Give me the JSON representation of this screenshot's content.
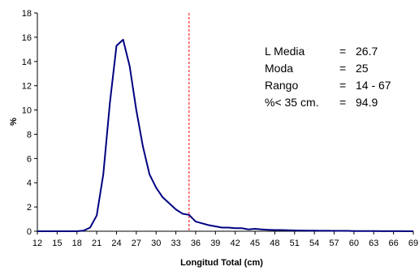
{
  "chart_data": {
    "type": "line",
    "xlabel": "Longitud Total (cm)",
    "ylabel": "%",
    "xlim": [
      12,
      69
    ],
    "ylim": [
      0,
      18
    ],
    "x_ticks": [
      12,
      15,
      18,
      21,
      24,
      27,
      30,
      33,
      36,
      39,
      42,
      45,
      48,
      51,
      54,
      57,
      60,
      63,
      66,
      69
    ],
    "y_ticks": [
      0,
      2,
      4,
      6,
      8,
      10,
      12,
      14,
      16,
      18
    ],
    "grid": false,
    "series": [
      {
        "color": "#000080",
        "x": [
          12,
          13,
          14,
          15,
          16,
          17,
          18,
          19,
          20,
          21,
          22,
          23,
          24,
          25,
          26,
          27,
          28,
          29,
          30,
          31,
          32,
          33,
          34,
          35,
          36,
          37,
          38,
          39,
          40,
          41,
          42,
          43,
          44,
          45,
          46,
          47,
          48,
          49,
          50,
          51,
          52,
          53,
          54,
          55,
          56,
          57,
          58,
          59,
          60,
          61,
          62,
          63,
          64,
          65,
          66,
          67,
          68,
          69
        ],
        "y": [
          0,
          0,
          0,
          0,
          0,
          0,
          0,
          0.05,
          0.3,
          1.3,
          4.7,
          10.6,
          15.3,
          15.8,
          13.6,
          10.0,
          7.0,
          4.7,
          3.6,
          2.8,
          2.3,
          1.8,
          1.45,
          1.35,
          0.8,
          0.65,
          0.5,
          0.4,
          0.3,
          0.3,
          0.25,
          0.25,
          0.15,
          0.2,
          0.15,
          0.12,
          0.1,
          0.1,
          0.08,
          0.07,
          0.06,
          0.05,
          0.05,
          0.04,
          0.04,
          0.03,
          0.03,
          0.03,
          0.02,
          0.02,
          0.02,
          0.02,
          0.01,
          0.01,
          0.01,
          0.01,
          0,
          0
        ]
      }
    ],
    "reference_line": {
      "x": 35,
      "color": "#ff0000",
      "style": "dashed"
    },
    "annotations": [
      {
        "label": "L Media",
        "eq": "=",
        "value": "26.7"
      },
      {
        "label": "Moda",
        "eq": "=",
        "value": "25"
      },
      {
        "label": "Rango",
        "eq": "=",
        "value": "14 - 67"
      },
      {
        "label": "%< 35 cm.",
        "eq": "=",
        "value": "94.9"
      }
    ]
  }
}
